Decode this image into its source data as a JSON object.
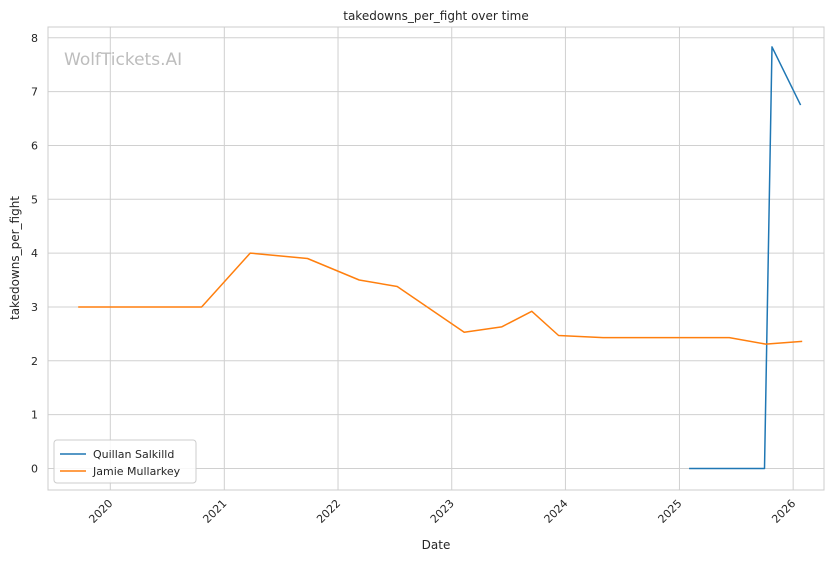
{
  "chart_data": {
    "type": "line",
    "title": "takedowns_per_fight over time",
    "xlabel": "Date",
    "ylabel": "takedowns_per_fight",
    "watermark": "WolfTickets.AI",
    "x_ticks": [
      "2020",
      "2021",
      "2022",
      "2023",
      "2024",
      "2025",
      "2026"
    ],
    "y_ticks": [
      0,
      1,
      2,
      3,
      4,
      5,
      6,
      7,
      8
    ],
    "xlim": [
      "2019-06-15",
      "2026-04-10"
    ],
    "ylim": [
      -0.4,
      8.2
    ],
    "grid": true,
    "legend_position": "lower-left",
    "series": [
      {
        "name": "Quillan Salkilld",
        "color": "#1f77b4",
        "points": [
          {
            "x": "2025-02-01",
            "y": 0
          },
          {
            "x": "2025-06-10",
            "y": 0
          },
          {
            "x": "2025-10-01",
            "y": 0
          },
          {
            "x": "2025-10-25",
            "y": 7.83
          },
          {
            "x": "2026-01-25",
            "y": 6.75
          }
        ]
      },
      {
        "name": "Jamie Mullarkey",
        "color": "#ff7f0e",
        "points": [
          {
            "x": "2019-09-20",
            "y": 3.0
          },
          {
            "x": "2020-10-20",
            "y": 3.0
          },
          {
            "x": "2021-03-25",
            "y": 4.0
          },
          {
            "x": "2021-09-25",
            "y": 3.9
          },
          {
            "x": "2022-03-10",
            "y": 3.5
          },
          {
            "x": "2022-07-10",
            "y": 3.38
          },
          {
            "x": "2023-02-10",
            "y": 2.53
          },
          {
            "x": "2023-06-10",
            "y": 2.63
          },
          {
            "x": "2023-09-15",
            "y": 2.92
          },
          {
            "x": "2023-12-10",
            "y": 2.47
          },
          {
            "x": "2024-05-01",
            "y": 2.43
          },
          {
            "x": "2025-06-10",
            "y": 2.43
          },
          {
            "x": "2025-10-05",
            "y": 2.31
          },
          {
            "x": "2026-01-30",
            "y": 2.36
          }
        ]
      }
    ]
  }
}
